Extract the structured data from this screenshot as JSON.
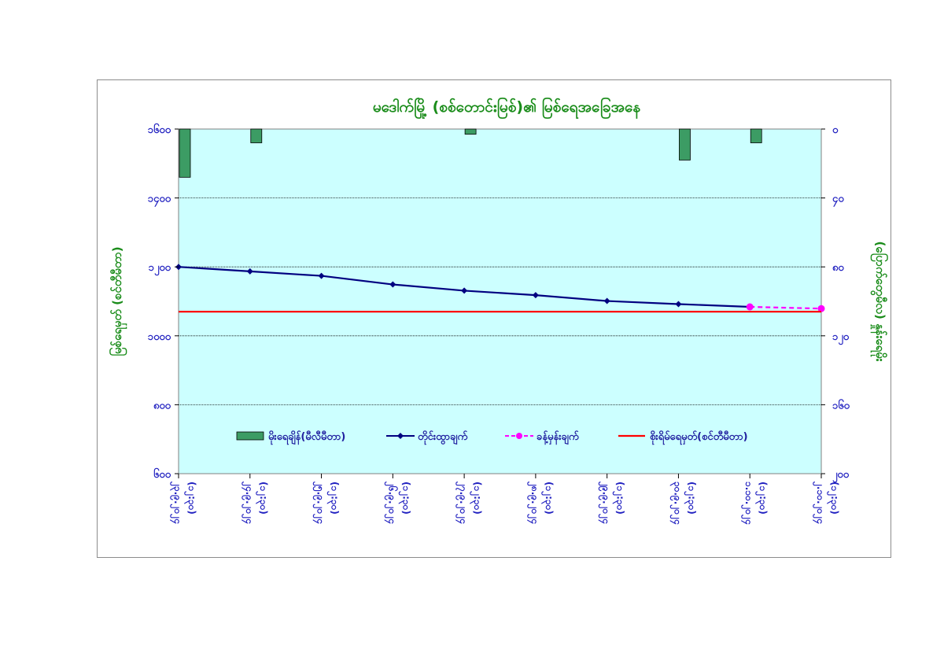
{
  "chart_data": {
    "type": "bar+line",
    "title": "မဒေါက်မြို့ (စစ်တောင်းမြစ်)၏ မြစ်ရေအခြေအနေ",
    "ylabel_left": "မြစ်ရေမှတ် (စင်တီမီတာ)",
    "ylabel_right": "(ပြောက်တွေမီလ) နှုန်းရေမိုး",
    "y_left": {
      "min": 600,
      "max": 1600,
      "ticks": [
        "၆၀၀",
        "၈၀၀",
        "၁၀၀၀",
        "၁၂၀၀",
        "၁၄၀၀",
        "၁၆၀၀"
      ],
      "tick_values": [
        600,
        800,
        1000,
        1200,
        1400,
        1600
      ]
    },
    "y_right": {
      "min": 0,
      "max": 200,
      "reversed": true,
      "ticks": [
        "၀",
        "၄၀",
        "၈၀",
        "၁၂၀",
        "၁၆၀",
        "၂၀၀"
      ],
      "tick_values": [
        0,
        40,
        80,
        120,
        160,
        200
      ]
    },
    "x_labels": [
      [
        "၂၃.၉.၂၀၂၄",
        "(၁၂:၃၀)"
      ],
      [
        "၂၄.၉.၂၀၂၄",
        "(၁၂:၃၀)"
      ],
      [
        "၂၅.၉.၂၀၂၄",
        "(၁၂:၃၀)"
      ],
      [
        "၂၆.၉.၂၀၂၄",
        "(၁၂:၃၀)"
      ],
      [
        "၂၇.၉.၂၀၂၄",
        "(၁၂:၃၀)"
      ],
      [
        "၂၈.၉.၂၀၂၄",
        "(၁၂:၃၀)"
      ],
      [
        "၂၉.၉.၂၀၂၄",
        "(၁၂:၃၀)"
      ],
      [
        "၃၀.၉.၂၀၂၄",
        "(၁၂:၃၀)"
      ],
      [
        "၁.၁၀.၂၀၂၄",
        "(၁၂:၃၀)"
      ],
      [
        "၂.၁၀.၂၀၂၄",
        "(၁၂:၃၀)"
      ]
    ],
    "series": [
      {
        "name": "မိုးရေချိန်(မီလီမီတာ)",
        "kind": "bar",
        "axis": "right",
        "color": "#3c9c64",
        "values": [
          28,
          8,
          null,
          null,
          3,
          null,
          null,
          18,
          8,
          null
        ]
      },
      {
        "name": "တိုင်းထွာချက်",
        "kind": "line",
        "axis": "left",
        "color": "#000080",
        "values": [
          1200,
          1187,
          1174,
          1149,
          1131,
          1118,
          1101,
          1092,
          1084,
          null
        ]
      },
      {
        "name": "ခန့်မှန်းချက်",
        "kind": "line-dashed",
        "axis": "left",
        "color": "#ff00ff",
        "values": [
          null,
          null,
          null,
          null,
          null,
          null,
          null,
          null,
          1084,
          1079
        ]
      },
      {
        "name": "စိုးရိမ်ရေမှတ်(စင်တီမီတာ)",
        "kind": "hline",
        "axis": "left",
        "color": "#ff0000",
        "value": 1070
      }
    ],
    "plot_background": "#ccffff",
    "gridlines": true,
    "legend_position": "inside-bottom"
  }
}
